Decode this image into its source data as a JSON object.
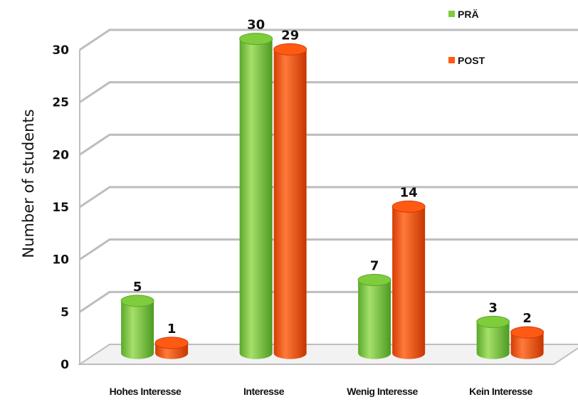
{
  "chart_data": {
    "type": "bar",
    "title": "",
    "xlabel": "",
    "ylabel": "Number of students",
    "categories": [
      "Hohes Interesse",
      "Interesse",
      "Wenig Interesse",
      "Kein Interesse"
    ],
    "series": [
      {
        "name": "PRÄ",
        "values": [
          5,
          30,
          7,
          3
        ],
        "color": "#7fcc3c"
      },
      {
        "name": "POST",
        "values": [
          1,
          29,
          14,
          2
        ],
        "color": "#ff5a14"
      }
    ],
    "ylim": [
      0,
      30
    ],
    "yticks": [
      0,
      5,
      10,
      15,
      20,
      25,
      30
    ],
    "grid": true,
    "legend": "top-right",
    "style": "3d-cylinder"
  }
}
